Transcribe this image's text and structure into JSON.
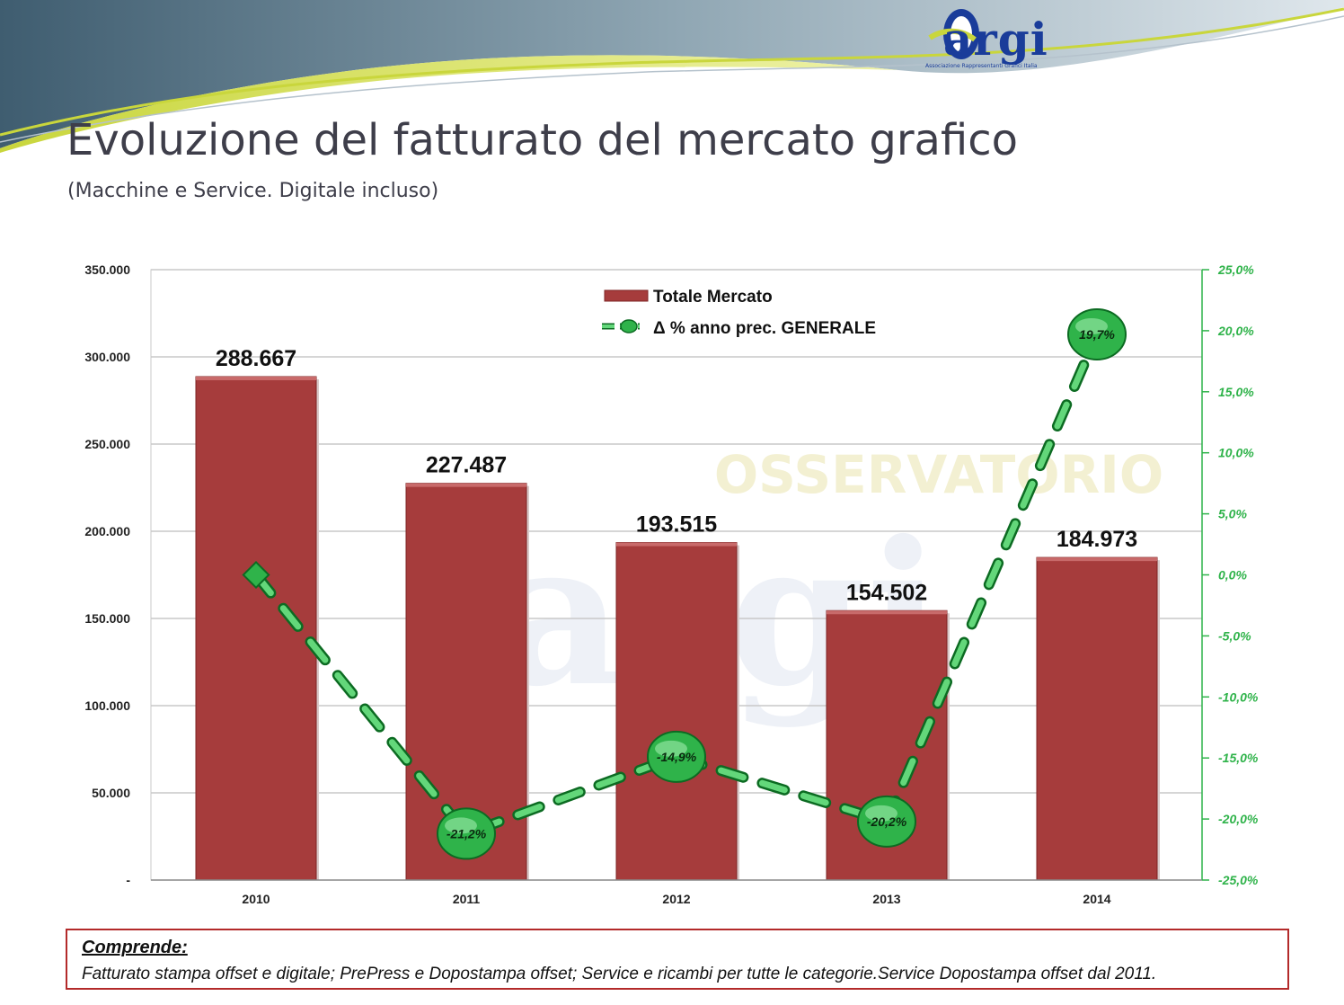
{
  "logo": {
    "text": "argi",
    "subtext": "Associazione Rappresentanti Grafici Italia"
  },
  "slide": {
    "title": "Evoluzione del fatturato del mercato grafico",
    "subtitle": "(Macchine e Service. Digitale incluso)"
  },
  "chart_data": {
    "type": "bar",
    "categories": [
      "2010",
      "2011",
      "2012",
      "2013",
      "2014"
    ],
    "series": [
      {
        "name": "Totale Mercato",
        "type": "bar",
        "values": [
          288667,
          227487,
          193515,
          154502,
          184973
        ],
        "labels": [
          "288.667",
          "227.487",
          "193.515",
          "154.502",
          "184.973"
        ],
        "color": "#a63c3c"
      },
      {
        "name": "Δ % anno prec. GENERALE",
        "type": "line",
        "axis": "right",
        "values": [
          0.0,
          -21.2,
          -14.9,
          -20.2,
          19.7
        ],
        "labels": [
          "",
          "-21,2%",
          "-14,9%",
          "-20,2%",
          "19,7%"
        ],
        "color": "#2fb34a"
      }
    ],
    "y_left": {
      "ylim": [
        0,
        350000
      ],
      "ticks": [
        0,
        50000,
        100000,
        150000,
        200000,
        250000,
        300000,
        350000
      ],
      "tick_labels": [
        "-",
        "50.000",
        "100.000",
        "150.000",
        "200.000",
        "250.000",
        "300.000",
        "350.000"
      ]
    },
    "y_right": {
      "ylim": [
        -25,
        25
      ],
      "ticks": [
        -25,
        -20,
        -15,
        -10,
        -5,
        0,
        5,
        10,
        15,
        20,
        25
      ],
      "tick_labels": [
        "-25,0%",
        "-20,0%",
        "-15,0%",
        "-10,0%",
        "-5,0%",
        "0,0%",
        "5,0%",
        "10,0%",
        "15,0%",
        "20,0%",
        "25,0%"
      ]
    },
    "grid": true,
    "legend": "top-center",
    "watermark": [
      "OSSERVATORIO",
      "argi"
    ]
  },
  "note": {
    "heading": "Comprende:",
    "text": "Fatturato stampa offset e digitale; PrePress e Dopostampa offset; Service e ricambi per tutte le categorie.Service  Dopostampa offset dal 2011."
  }
}
